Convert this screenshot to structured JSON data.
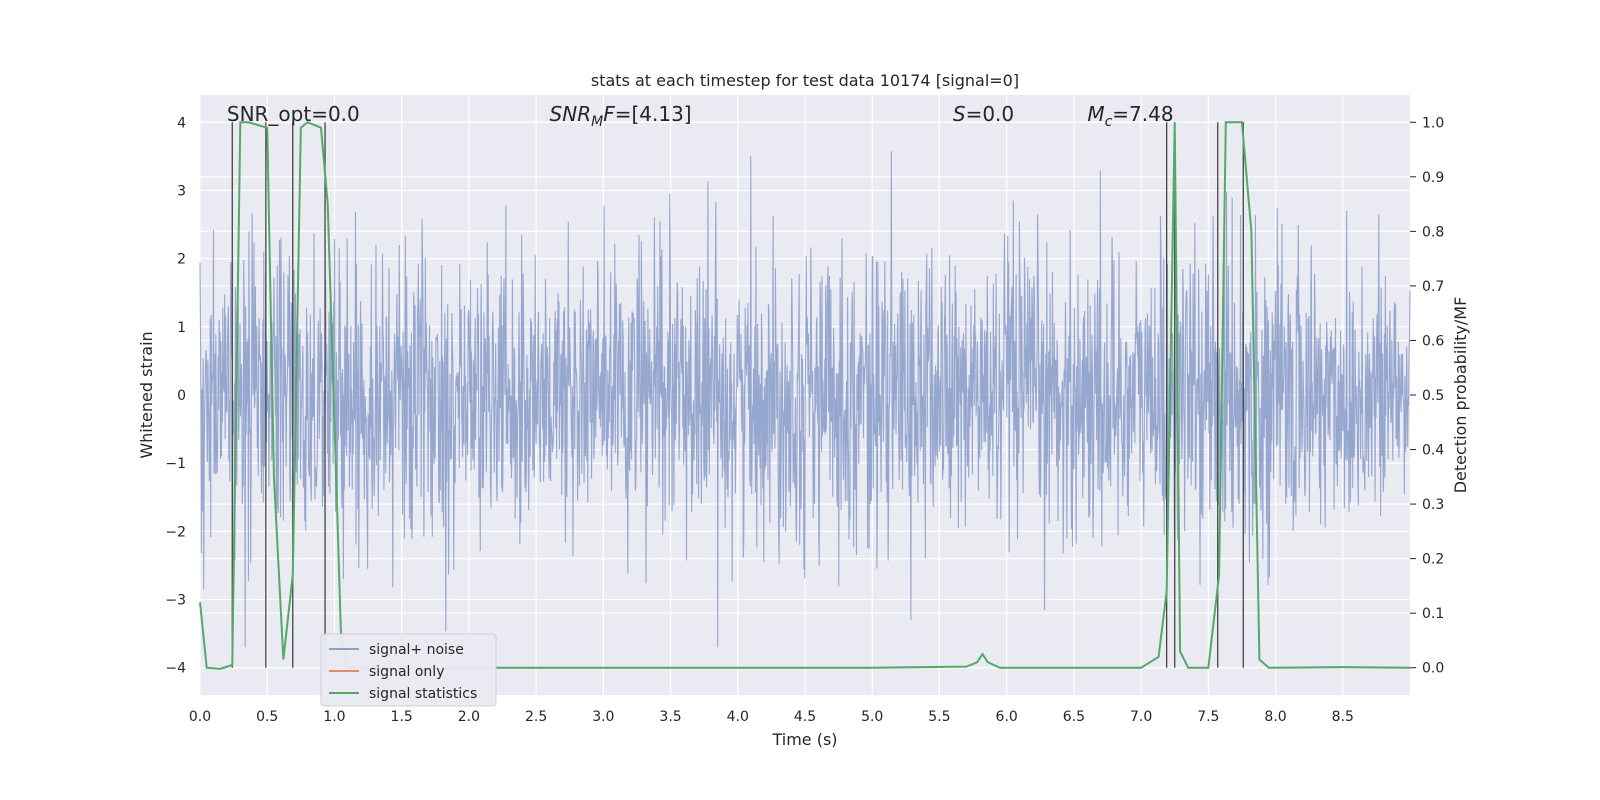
{
  "chart_data": {
    "type": "line",
    "title": "stats at each timestep for test data 10174 [signal=0]",
    "xlabel": "Time (s)",
    "ylabel": "Whitened strain",
    "y2label": "Detection probability/MF",
    "xlim": [
      0.0,
      9.0
    ],
    "ylim": [
      -4.4,
      4.4
    ],
    "y2lim": [
      -0.05,
      1.05
    ],
    "xticks": [
      0.0,
      0.5,
      1.0,
      1.5,
      2.0,
      2.5,
      3.0,
      3.5,
      4.0,
      4.5,
      5.0,
      5.5,
      6.0,
      6.5,
      7.0,
      7.5,
      8.0,
      8.5
    ],
    "xtick_labels": [
      "0.0",
      "0.5",
      "1.0",
      "1.5",
      "2.0",
      "2.5",
      "3.0",
      "3.5",
      "4.0",
      "4.5",
      "5.0",
      "5.5",
      "6.0",
      "6.5",
      "7.0",
      "7.5",
      "8.0",
      "8.5"
    ],
    "yticks": [
      -4,
      -3,
      -2,
      -1,
      0,
      1,
      2,
      3,
      4
    ],
    "ytick_labels": [
      "−4",
      "−3",
      "−2",
      "−1",
      "0",
      "1",
      "2",
      "3",
      "4"
    ],
    "y2ticks": [
      0.0,
      0.1,
      0.2,
      0.3,
      0.4,
      0.5,
      0.6,
      0.7,
      0.8,
      0.9,
      1.0
    ],
    "y2tick_labels": [
      "0.0",
      "0.1",
      "0.2",
      "0.3",
      "0.4",
      "0.5",
      "0.6",
      "0.7",
      "0.8",
      "0.9",
      "1.0"
    ],
    "grid": true,
    "legend_placement": "lower-left",
    "annotations": [
      {
        "text": "SNR_opt=0.0",
        "x": 0.2,
        "y": 4.12
      },
      {
        "text": "SNR_MF=[4.13]",
        "x": 2.6,
        "y": 4.12
      },
      {
        "text": "S=0.0",
        "x": 5.6,
        "y": 4.12
      },
      {
        "text": "M_c=7.48",
        "x": 6.6,
        "y": 4.12
      }
    ],
    "series": [
      {
        "name": "signal+ noise",
        "color": "#8da0cb",
        "style": "dense noise, amplitude approx ±2.5 with spikes up to ±3.7",
        "sample_rate_hint": 4096
      },
      {
        "name": "signal only",
        "color": "#e5896b",
        "values": []
      },
      {
        "name": "signal statistics",
        "color": "#55a868",
        "axis": "right",
        "x": [
          0.0,
          0.05,
          0.15,
          0.24,
          0.3,
          0.36,
          0.5,
          0.55,
          0.62,
          0.69,
          0.75,
          0.8,
          0.9,
          0.95,
          1.05,
          1.1,
          1.2,
          2.0,
          3.0,
          4.0,
          5.0,
          5.7,
          5.78,
          5.82,
          5.86,
          5.95,
          6.5,
          7.0,
          7.13,
          7.19,
          7.25,
          7.29,
          7.35,
          7.5,
          7.58,
          7.63,
          7.75,
          7.82,
          7.88,
          7.95,
          8.5,
          9.0
        ],
        "y": [
          0.12,
          0.0,
          -0.002,
          0.005,
          1.0,
          1.0,
          0.99,
          0.35,
          0.015,
          0.17,
          0.99,
          1.0,
          0.99,
          0.85,
          0.05,
          0.0,
          0.0,
          0.0,
          0.0,
          0.0,
          0.0,
          0.002,
          0.01,
          0.025,
          0.01,
          0.0,
          0.0,
          0.0,
          0.02,
          0.14,
          1.0,
          0.03,
          0.0,
          0.0,
          0.17,
          1.0,
          1.0,
          0.8,
          0.015,
          0.0,
          0.001,
          0.0
        ]
      }
    ],
    "vertical_lines": [
      0.24,
      0.49,
      0.69,
      0.93,
      7.19,
      7.25,
      7.57,
      7.76
    ],
    "vertical_line_color": "#444444"
  },
  "legend": {
    "items": [
      {
        "label": "signal+ noise",
        "color": "#8da0cb"
      },
      {
        "label": "signal only",
        "color": "#e5896b"
      },
      {
        "label": "signal statistics",
        "color": "#55a868"
      }
    ]
  },
  "colors": {
    "axes_background": "#eaeaf2",
    "grid": "#ffffff"
  }
}
